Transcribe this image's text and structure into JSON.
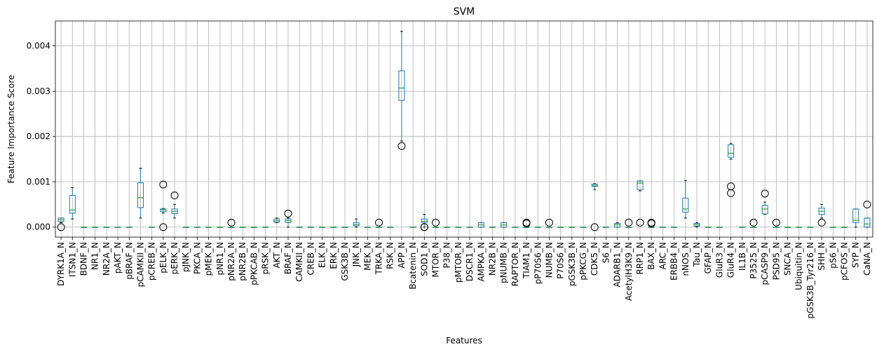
{
  "chart_data": {
    "type": "box",
    "title": "SVM",
    "xlabel": "Features",
    "ylabel": "Feature Importance Score",
    "ylim": [
      -0.00022,
      0.00455
    ],
    "yticks": [
      0.0,
      0.001,
      0.002,
      0.003,
      0.004
    ],
    "ytick_labels": [
      "0.000",
      "0.001",
      "0.002",
      "0.003",
      "0.004"
    ],
    "grid": true,
    "colors": {
      "box": "#1f77b4",
      "median": "#2ca02c",
      "grid": "#b0b0b0",
      "flier": "#000000"
    },
    "categories": [
      "DYRK1A_N",
      "ITSN1_N",
      "BDNF_N",
      "NR1_N",
      "NR2A_N",
      "pAKT_N",
      "pBRAF_N",
      "pCAMKII_N",
      "pCREB_N",
      "pELK_N",
      "pERK_N",
      "pJNK_N",
      "PKCA_N",
      "pMEK_N",
      "pNR1_N",
      "pNR2A_N",
      "pNR2B_N",
      "pPKCAB_N",
      "pRSK_N",
      "AKT_N",
      "BRAF_N",
      "CAMKII_N",
      "CREB_N",
      "ELK_N",
      "ERK_N",
      "GSK3B_N",
      "JNK_N",
      "MEK_N",
      "TRKA_N",
      "RSK_N",
      "APP_N",
      "Bcatenin_N",
      "SOD1_N",
      "MTOR_N",
      "P38_N",
      "pMTOR_N",
      "DSCR1_N",
      "AMPKA_N",
      "NR2B_N",
      "pNUMB_N",
      "RAPTOR_N",
      "TIAM1_N",
      "pP70S6_N",
      "NUMB_N",
      "P70S6_N",
      "pGSK3B_N",
      "pPKCG_N",
      "CDK5_N",
      "S6_N",
      "ADARB1_N",
      "AcetylH3K9_N",
      "RRP1_N",
      "BAX_N",
      "ARC_N",
      "ERBB4_N",
      "nNOS_N",
      "Tau_N",
      "GFAP_N",
      "GluR3_N",
      "GluR4_N",
      "IL1B_N",
      "P3525_N",
      "pCASP9_N",
      "PSD95_N",
      "SNCA_N",
      "Ubiquitin_N",
      "pGSK3B_Tyr216_N",
      "SHH_N",
      "pS6_N",
      "pCFOS_N",
      "SYP_N",
      "CaNA_N"
    ],
    "boxes": [
      {
        "min": 0.0001,
        "q1": 0.00012,
        "median": 0.00016,
        "q3": 0.0002,
        "max": 0.0002,
        "fliers": [
          0.0
        ]
      },
      {
        "min": 0.00018,
        "q1": 0.00031,
        "median": 0.00038,
        "q3": 0.0007,
        "max": 0.00087,
        "fliers": []
      },
      {
        "min": 0,
        "q1": 0,
        "median": 0,
        "q3": 0,
        "max": 0,
        "fliers": []
      },
      {
        "min": 0,
        "q1": 0,
        "median": 0,
        "q3": 0,
        "max": 0,
        "fliers": []
      },
      {
        "min": 0,
        "q1": 0,
        "median": 0,
        "q3": 0,
        "max": 0,
        "fliers": []
      },
      {
        "min": 0,
        "q1": 0,
        "median": 0,
        "q3": 0,
        "max": 0,
        "fliers": []
      },
      {
        "min": 0,
        "q1": 0,
        "median": 0,
        "q3": 0,
        "max": 0,
        "fliers": []
      },
      {
        "min": 0.0002,
        "q1": 0.00043,
        "median": 0.00065,
        "q3": 0.00098,
        "max": 0.0013,
        "fliers": []
      },
      {
        "min": 0,
        "q1": 0,
        "median": 0,
        "q3": 0,
        "max": 0,
        "fliers": []
      },
      {
        "min": 0.00031,
        "q1": 0.00034,
        "median": 0.00038,
        "q3": 0.0004,
        "max": 0.00041,
        "fliers": [
          0.00094,
          0.0
        ]
      },
      {
        "min": 0.0002,
        "q1": 0.0003,
        "median": 0.00035,
        "q3": 0.0004,
        "max": 0.0005,
        "fliers": [
          0.0007
        ]
      },
      {
        "min": 0,
        "q1": 0,
        "median": 0,
        "q3": 0,
        "max": 0,
        "fliers": []
      },
      {
        "min": 0,
        "q1": 0,
        "median": 0,
        "q3": 0,
        "max": 0,
        "fliers": []
      },
      {
        "min": 0,
        "q1": 0,
        "median": 0,
        "q3": 0,
        "max": 0,
        "fliers": []
      },
      {
        "min": 0,
        "q1": 0,
        "median": 0,
        "q3": 0,
        "max": 0,
        "fliers": []
      },
      {
        "min": 0,
        "q1": 0,
        "median": 0,
        "q3": 0,
        "max": 0,
        "fliers": [
          0.0001
        ]
      },
      {
        "min": 0,
        "q1": 0,
        "median": 0,
        "q3": 0,
        "max": 0,
        "fliers": []
      },
      {
        "min": 0,
        "q1": 0,
        "median": 0,
        "q3": 0,
        "max": 0,
        "fliers": []
      },
      {
        "min": 0,
        "q1": 0,
        "median": 0,
        "q3": 0,
        "max": 0,
        "fliers": []
      },
      {
        "min": 0.0001,
        "q1": 0.00011,
        "median": 0.00014,
        "q3": 0.00018,
        "max": 0.0002,
        "fliers": []
      },
      {
        "min": 0.0,
        "q1": 0.0001,
        "median": 0.00014,
        "q3": 0.00018,
        "max": 0.0002,
        "fliers": [
          0.0003
        ]
      },
      {
        "min": 0,
        "q1": 0,
        "median": 0,
        "q3": 0,
        "max": 0,
        "fliers": []
      },
      {
        "min": 0,
        "q1": 0,
        "median": 0,
        "q3": 0,
        "max": 0,
        "fliers": []
      },
      {
        "min": 0,
        "q1": 0,
        "median": 0,
        "q3": 0,
        "max": 0,
        "fliers": []
      },
      {
        "min": 0,
        "q1": 0,
        "median": 0,
        "q3": 0,
        "max": 0,
        "fliers": []
      },
      {
        "min": 0,
        "q1": 0,
        "median": 0,
        "q3": 0,
        "max": 0,
        "fliers": []
      },
      {
        "min": 0.0,
        "q1": 3e-05,
        "median": 6e-05,
        "q3": 0.0001,
        "max": 0.00018,
        "fliers": []
      },
      {
        "min": 0,
        "q1": 0,
        "median": 0,
        "q3": 0,
        "max": 0,
        "fliers": []
      },
      {
        "min": 0,
        "q1": 0,
        "median": 0,
        "q3": 0,
        "max": 0,
        "fliers": [
          0.0001
        ]
      },
      {
        "min": 0,
        "q1": 0,
        "median": 0,
        "q3": 0,
        "max": 0,
        "fliers": []
      },
      {
        "min": 0.0019,
        "q1": 0.0028,
        "median": 0.00307,
        "q3": 0.00345,
        "max": 0.00432,
        "fliers": [
          0.00179
        ]
      },
      {
        "min": 0,
        "q1": 0,
        "median": 0,
        "q3": 0,
        "max": 0,
        "fliers": []
      },
      {
        "min": 0.0,
        "q1": 0.0001,
        "median": 0.00013,
        "q3": 0.00018,
        "max": 0.00028,
        "fliers": [
          0.0,
          0.0
        ]
      },
      {
        "min": 0,
        "q1": 0,
        "median": 0,
        "q3": 0,
        "max": 0,
        "fliers": [
          0.0001
        ]
      },
      {
        "min": 0,
        "q1": 0,
        "median": 0,
        "q3": 0,
        "max": 0,
        "fliers": []
      },
      {
        "min": 0,
        "q1": 0,
        "median": 0,
        "q3": 0,
        "max": 0,
        "fliers": []
      },
      {
        "min": 0,
        "q1": 0,
        "median": 0,
        "q3": 0,
        "max": 0,
        "fliers": []
      },
      {
        "min": 0.0,
        "q1": 0.0,
        "median": 5e-05,
        "q3": 0.0001,
        "max": 0.0001,
        "fliers": []
      },
      {
        "min": 0,
        "q1": 0,
        "median": 0,
        "q3": 0,
        "max": 0,
        "fliers": []
      },
      {
        "min": 0.0,
        "q1": 0.0,
        "median": 5e-05,
        "q3": 0.0001,
        "max": 0.0001,
        "fliers": []
      },
      {
        "min": 0,
        "q1": 0,
        "median": 0,
        "q3": 0,
        "max": 0,
        "fliers": []
      },
      {
        "min": 0,
        "q1": 0,
        "median": 0,
        "q3": 0,
        "max": 0,
        "fliers": [
          0.0001,
          8e-05
        ]
      },
      {
        "min": 0,
        "q1": 0,
        "median": 0,
        "q3": 0,
        "max": 0,
        "fliers": []
      },
      {
        "min": 0,
        "q1": 0,
        "median": 0,
        "q3": 0,
        "max": 0,
        "fliers": [
          0.0001
        ]
      },
      {
        "min": 0,
        "q1": 0,
        "median": 0,
        "q3": 0,
        "max": 0,
        "fliers": []
      },
      {
        "min": 0,
        "q1": 0,
        "median": 0,
        "q3": 0,
        "max": 0,
        "fliers": []
      },
      {
        "min": 0,
        "q1": 0,
        "median": 0,
        "q3": 0,
        "max": 0,
        "fliers": []
      },
      {
        "min": 0.00083,
        "q1": 0.0009,
        "median": 0.00092,
        "q3": 0.00095,
        "max": 0.00096,
        "fliers": [
          0.0
        ]
      },
      {
        "min": 0,
        "q1": 0,
        "median": 0,
        "q3": 0,
        "max": 0,
        "fliers": []
      },
      {
        "min": 0.0,
        "q1": 0.0,
        "median": 5e-05,
        "q3": 8e-05,
        "max": 0.0001,
        "fliers": []
      },
      {
        "min": 0,
        "q1": 0,
        "median": 0,
        "q3": 0,
        "max": 0,
        "fliers": [
          0.0001
        ]
      },
      {
        "min": 0.0008,
        "q1": 0.00083,
        "median": 0.00097,
        "q3": 0.00102,
        "max": 0.00102,
        "fliers": [
          0.0001
        ]
      },
      {
        "min": 0,
        "q1": 0,
        "median": 0,
        "q3": 0,
        "max": 0,
        "fliers": [
          0.0001,
          8e-05
        ]
      },
      {
        "min": 0,
        "q1": 0,
        "median": 0,
        "q3": 0,
        "max": 0,
        "fliers": []
      },
      {
        "min": 0,
        "q1": 0,
        "median": 0,
        "q3": 0,
        "max": 0,
        "fliers": []
      },
      {
        "min": 0.0002,
        "q1": 0.00033,
        "median": 0.0004,
        "q3": 0.00064,
        "max": 0.00103,
        "fliers": []
      },
      {
        "min": 0.0,
        "q1": 2e-05,
        "median": 5e-05,
        "q3": 8e-05,
        "max": 0.0001,
        "fliers": []
      },
      {
        "min": 0,
        "q1": 0,
        "median": 0,
        "q3": 0,
        "max": 0,
        "fliers": []
      },
      {
        "min": 0,
        "q1": 0,
        "median": 0,
        "q3": 0,
        "max": 0,
        "fliers": []
      },
      {
        "min": 0.0015,
        "q1": 0.00154,
        "median": 0.00163,
        "q3": 0.00182,
        "max": 0.00185,
        "fliers": [
          0.0009,
          0.00075
        ]
      },
      {
        "min": 0,
        "q1": 0,
        "median": 0,
        "q3": 0,
        "max": 0,
        "fliers": []
      },
      {
        "min": 0,
        "q1": 0,
        "median": 0,
        "q3": 0,
        "max": 0,
        "fliers": [
          0.0001
        ]
      },
      {
        "min": 0.00028,
        "q1": 0.00029,
        "median": 0.0004,
        "q3": 0.00048,
        "max": 0.00055,
        "fliers": [
          0.00074
        ]
      },
      {
        "min": 0,
        "q1": 0,
        "median": 0,
        "q3": 0,
        "max": 0,
        "fliers": [
          0.0001
        ]
      },
      {
        "min": 0,
        "q1": 0,
        "median": 0,
        "q3": 0,
        "max": 0,
        "fliers": []
      },
      {
        "min": 0,
        "q1": 0,
        "median": 0,
        "q3": 0,
        "max": 0,
        "fliers": []
      },
      {
        "min": 0,
        "q1": 0,
        "median": 0,
        "q3": 0,
        "max": 0,
        "fliers": []
      },
      {
        "min": 0.0002,
        "q1": 0.00028,
        "median": 0.00035,
        "q3": 0.00042,
        "max": 0.0005,
        "fliers": [
          0.0001
        ]
      },
      {
        "min": 0,
        "q1": 0,
        "median": 0,
        "q3": 0,
        "max": 0,
        "fliers": []
      },
      {
        "min": 0,
        "q1": 0,
        "median": 0,
        "q3": 0,
        "max": 0,
        "fliers": []
      },
      {
        "min": 0.0,
        "q1": 0.0001,
        "median": 0.00015,
        "q3": 0.0004,
        "max": 0.0004,
        "fliers": []
      },
      {
        "min": 0.0,
        "q1": 0.0,
        "median": 7e-05,
        "q3": 0.0002,
        "max": 0.0002,
        "fliers": [
          0.0005
        ]
      }
    ]
  }
}
